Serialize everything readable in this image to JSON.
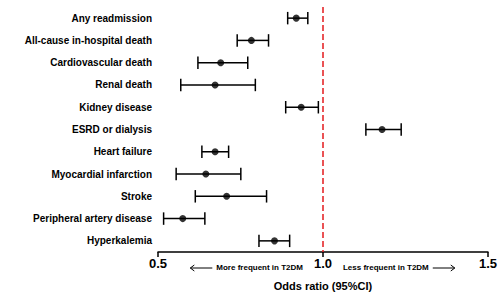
{
  "chart_data": {
    "type": "forest",
    "categories": [
      "Any readmission",
      "All-cause in-hospital death",
      "Cardiovascular death",
      "Renal death",
      "Kidney disease",
      "ESRD or dialysis",
      "Heart failure",
      "Myocardial infarction",
      "Stroke",
      "Peripheral artery disease",
      "Hyperkalemia"
    ],
    "values": [
      0.919,
      0.783,
      0.69,
      0.673,
      0.934,
      1.179,
      0.673,
      0.645,
      0.708,
      0.575,
      0.853
    ],
    "ci_low": [
      0.893,
      0.74,
      0.621,
      0.569,
      0.887,
      1.13,
      0.633,
      0.555,
      0.613,
      0.517,
      0.806
    ],
    "ci_high": [
      0.954,
      0.835,
      0.772,
      0.795,
      0.986,
      1.237,
      0.714,
      0.751,
      0.829,
      0.642,
      0.899
    ],
    "color": "#000000",
    "xlabel": "Odds ratio (95%CI)",
    "xlim": [
      0.5,
      1.5
    ],
    "xticks": [
      0.5,
      {
        "value": 1,
        "label": "1.0"
      },
      1.5
    ],
    "reference_line": {
      "value": 1,
      "color": "#e31a1c",
      "line_style": "dashed"
    },
    "annotations": {
      "left": "More frequent in T2DM",
      "right": "Less frequent in T2DM"
    },
    "grid": false
  }
}
